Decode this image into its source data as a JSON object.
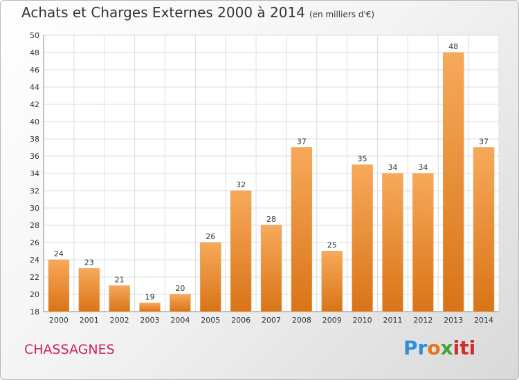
{
  "title": "Achats et Charges Externes 2000 à 2014",
  "subtitle": "(en milliers d'€)",
  "commune": "CHASSAGNES",
  "logo": {
    "p1": "Pr",
    "p2": "o",
    "p3": "x",
    "p4": "iti"
  },
  "colors": {
    "bar_light": "#f7a95a",
    "bar_dark": "#d97417",
    "commune": "#c8265a"
  },
  "chart_data": {
    "type": "bar",
    "categories": [
      "2000",
      "2001",
      "2002",
      "2003",
      "2004",
      "2005",
      "2006",
      "2007",
      "2008",
      "2009",
      "2010",
      "2011",
      "2012",
      "2013",
      "2014"
    ],
    "values": [
      24,
      23,
      21,
      19,
      20,
      26,
      32,
      28,
      37,
      25,
      35,
      34,
      34,
      48,
      37
    ],
    "ylim": [
      18,
      50
    ],
    "yticks": [
      18,
      20,
      22,
      24,
      26,
      28,
      30,
      32,
      34,
      36,
      38,
      40,
      42,
      44,
      46,
      48,
      50
    ],
    "grid": true
  }
}
